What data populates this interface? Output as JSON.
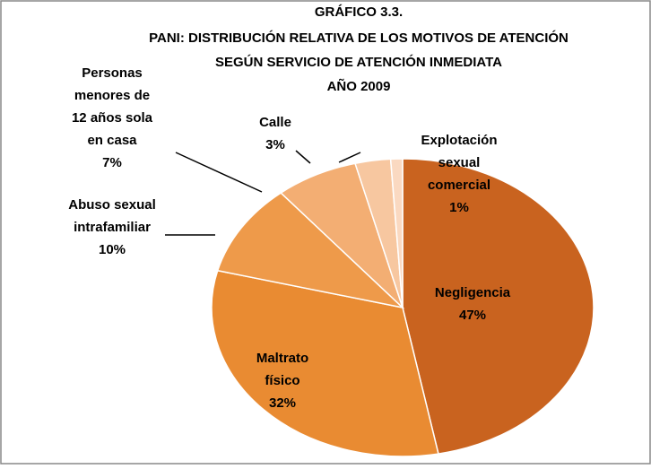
{
  "chart_data": {
    "type": "pie",
    "title": [
      "GRÁFICO 3.3.",
      "PANI: DISTRIBUCIÓN RELATIVA DE LOS MOTIVOS DE ATENCIÓN",
      "SEGÚN  SERVICIO DE ATENCIÓN INMEDIATA",
      "AÑO 2009"
    ],
    "categories": [
      [
        "Negligencia"
      ],
      [
        "Maltrato",
        "físico"
      ],
      [
        "Abuso sexual",
        "intrafamiliar"
      ],
      [
        "Personas",
        "menores de",
        "12 años sola",
        "en casa"
      ],
      [
        "Calle"
      ],
      [
        "Explotación",
        "sexual",
        "comercial"
      ]
    ],
    "values": [
      47,
      32,
      10,
      7,
      3,
      1
    ],
    "value_labels": [
      "47%",
      "32%",
      "10%",
      "7%",
      "3%",
      "1%"
    ],
    "colors": [
      "#c9631f",
      "#e98b32",
      "#ee9a4a",
      "#f3ae73",
      "#f7c7a0",
      "#fad9c1"
    ]
  }
}
